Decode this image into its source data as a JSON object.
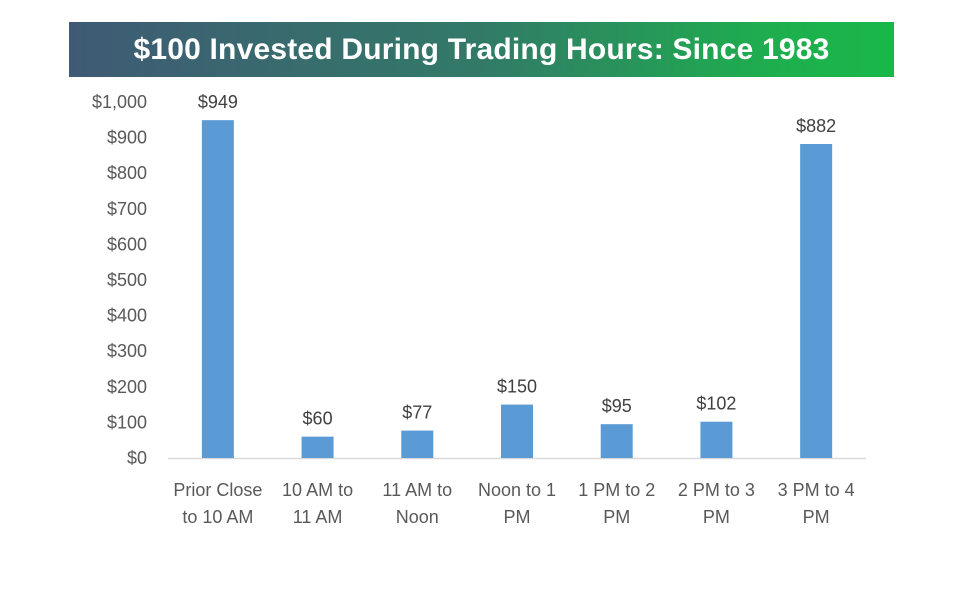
{
  "chart_data": {
    "type": "bar",
    "title": "$100 Invested During Trading Hours: Since 1983",
    "xlabel": "",
    "ylabel": "",
    "categories": [
      [
        "Prior Close",
        "to 10 AM"
      ],
      [
        "10 AM to",
        "11 AM"
      ],
      [
        "11 AM to",
        "Noon"
      ],
      [
        "Noon to 1",
        "PM"
      ],
      [
        "1 PM to 2",
        "PM"
      ],
      [
        "2 PM to 3",
        "PM"
      ],
      [
        "3 PM to 4",
        "PM"
      ]
    ],
    "values": [
      949,
      60,
      77,
      150,
      95,
      102,
      882
    ],
    "data_labels": [
      "$949",
      "$60",
      "$77",
      "$150",
      "$95",
      "$102",
      "$882"
    ],
    "ylim": [
      0,
      1000
    ],
    "yticks": [
      0,
      100,
      200,
      300,
      400,
      500,
      600,
      700,
      800,
      900,
      1000
    ],
    "ytick_labels": [
      "$0",
      "$100",
      "$200",
      "$300",
      "$400",
      "$500",
      "$600",
      "$700",
      "$800",
      "$900",
      "$1,000"
    ],
    "grid": false,
    "legend": "none",
    "bar_color": "#5b9bd5",
    "title_gradient": [
      "#3f5a75",
      "#19b74a"
    ]
  }
}
